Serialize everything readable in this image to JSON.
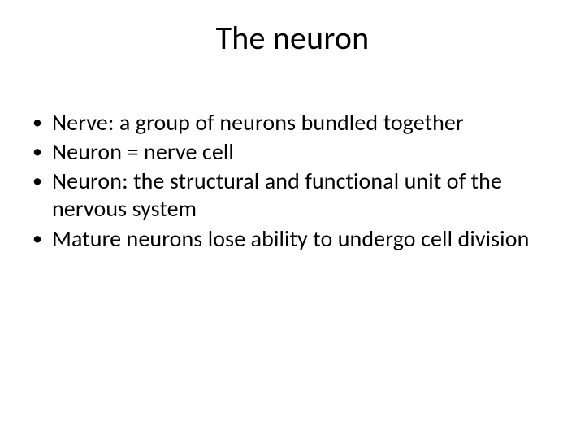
{
  "slide": {
    "title": "The neuron",
    "bullets": [
      "Nerve: a group of neurons bundled together",
      "Neuron = nerve cell",
      "Neuron: the structural and functional unit of the nervous system",
      "Mature neurons lose ability to undergo cell division"
    ],
    "colors": {
      "background": "#ffffff",
      "text": "#000000"
    },
    "typography": {
      "title_fontsize_pt": 40,
      "body_fontsize_pt": 28,
      "font_family": "Calibri"
    }
  }
}
